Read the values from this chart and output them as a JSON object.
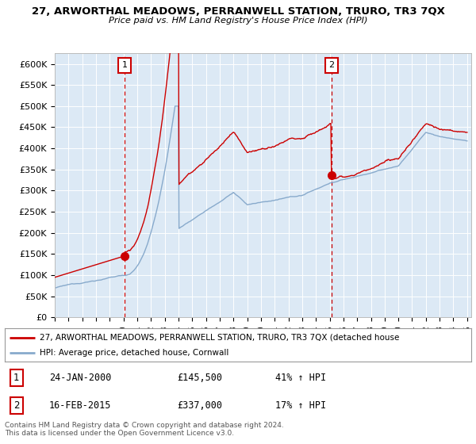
{
  "title": "27, ARWORTHAL MEADOWS, PERRANWELL STATION, TRURO, TR3 7QX",
  "subtitle": "Price paid vs. HM Land Registry's House Price Index (HPI)",
  "plot_bg_color": "#dce9f5",
  "ylim": [
    0,
    625000
  ],
  "yticks": [
    0,
    50000,
    100000,
    150000,
    200000,
    250000,
    300000,
    350000,
    400000,
    450000,
    500000,
    550000,
    600000
  ],
  "x_start_year": 1995,
  "x_end_year": 2025,
  "sale1_price": 145500,
  "sale1_x": 2000.07,
  "sale2_price": 337000,
  "sale2_x": 2015.12,
  "legend_line1": "27, ARWORTHAL MEADOWS, PERRANWELL STATION, TRURO, TR3 7QX (detached house",
  "legend_line2": "HPI: Average price, detached house, Cornwall",
  "table_row1_label": "1",
  "table_row1_date": "24-JAN-2000",
  "table_row1_price": "£145,500",
  "table_row1_hpi": "41% ↑ HPI",
  "table_row2_label": "2",
  "table_row2_date": "16-FEB-2015",
  "table_row2_price": "£337,000",
  "table_row2_hpi": "17% ↑ HPI",
  "footer": "Contains HM Land Registry data © Crown copyright and database right 2024.\nThis data is licensed under the Open Government Licence v3.0.",
  "line_color_red": "#cc0000",
  "line_color_blue": "#88aacc",
  "dashed_color": "#cc0000",
  "box_edge_color": "#cc0000"
}
